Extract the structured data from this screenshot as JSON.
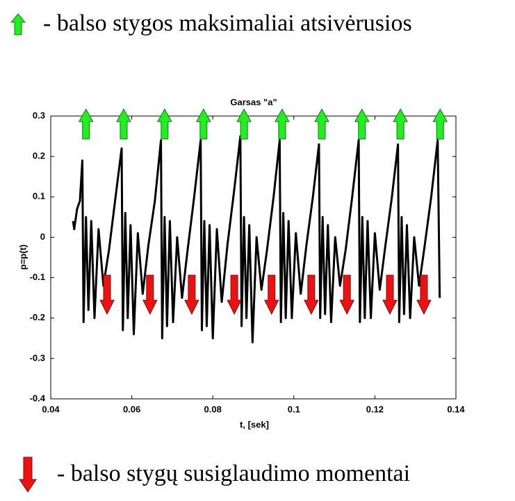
{
  "chart_data": {
    "type": "line",
    "title": "Garsas \"a\"",
    "x_label": "t, [sek]",
    "y_label": "p=p(t)",
    "color": "#000000",
    "x": [
      0.0455,
      0.0458,
      0.0465,
      0.0472,
      0.0478,
      0.0481,
      0.0487,
      0.0493,
      0.05,
      0.0508,
      0.0518,
      0.053,
      0.0544,
      0.056,
      0.0575,
      0.0578,
      0.0584,
      0.059,
      0.0597,
      0.0605,
      0.0615,
      0.0627,
      0.0641,
      0.0657,
      0.0672,
      0.0675,
      0.0681,
      0.0687,
      0.0694,
      0.0702,
      0.0712,
      0.0724,
      0.0738,
      0.0754,
      0.077,
      0.0773,
      0.0779,
      0.0785,
      0.0792,
      0.08,
      0.081,
      0.0822,
      0.0836,
      0.0852,
      0.0868,
      0.0871,
      0.0877,
      0.0883,
      0.089,
      0.0898,
      0.0908,
      0.092,
      0.0934,
      0.095,
      0.0965,
      0.0968,
      0.0974,
      0.098,
      0.0987,
      0.0995,
      0.1005,
      0.1017,
      0.1031,
      0.1047,
      0.1062,
      0.1065,
      0.1071,
      0.1077,
      0.1084,
      0.1092,
      0.1102,
      0.1114,
      0.1128,
      0.1144,
      0.116,
      0.1163,
      0.1169,
      0.1175,
      0.1182,
      0.119,
      0.12,
      0.1212,
      0.1226,
      0.1242,
      0.1257,
      0.126,
      0.1266,
      0.1272,
      0.1279,
      0.1287,
      0.1297,
      0.1309,
      0.1323,
      0.1339,
      0.1355,
      0.136
    ],
    "values": [
      0.04,
      0.02,
      0.07,
      0.09,
      0.19,
      -0.21,
      0.05,
      -0.18,
      0.04,
      -0.2,
      0.02,
      -0.12,
      -0.03,
      0.1,
      0.22,
      -0.23,
      0.06,
      -0.2,
      0.03,
      -0.24,
      0.01,
      -0.14,
      -0.02,
      0.09,
      0.24,
      -0.25,
      0.05,
      -0.22,
      0.04,
      -0.21,
      0.0,
      -0.15,
      -0.03,
      0.1,
      0.24,
      -0.23,
      0.04,
      -0.22,
      0.03,
      -0.25,
      0.02,
      -0.16,
      -0.02,
      0.11,
      0.25,
      -0.22,
      0.05,
      -0.2,
      0.03,
      -0.26,
      0.0,
      -0.13,
      -0.03,
      0.1,
      0.24,
      -0.21,
      0.06,
      -0.2,
      0.04,
      -0.2,
      0.01,
      -0.14,
      -0.02,
      0.1,
      0.23,
      -0.2,
      0.05,
      -0.19,
      0.03,
      -0.21,
      0.0,
      -0.12,
      -0.03,
      0.1,
      0.24,
      -0.21,
      0.05,
      -0.2,
      0.04,
      -0.2,
      0.01,
      -0.13,
      -0.02,
      0.1,
      0.23,
      -0.21,
      0.05,
      -0.19,
      0.03,
      -0.2,
      0.0,
      -0.12,
      -0.02,
      0.1,
      0.24,
      -0.15
    ],
    "xlim": [
      0.04,
      0.14
    ],
    "xticks": [
      0.04,
      0.06,
      0.08,
      0.1,
      0.12,
      0.14
    ],
    "ylim": [
      -0.4,
      0.3
    ],
    "yticks": [
      -0.4,
      -0.3,
      -0.2,
      -0.1,
      0,
      0.1,
      0.2,
      0.3
    ],
    "markers": [
      {
        "name": "-  balso stygos maksimaliai atsivėrusios",
        "direction": "up",
        "color": "#22ee22",
        "x": [
          0.0487,
          0.058,
          0.0681,
          0.0777,
          0.0877,
          0.0971,
          0.1069,
          0.1168,
          0.1263,
          0.1361
        ]
      },
      {
        "name": "-   balso stygų susiglaudimo momentai",
        "direction": "down",
        "color": "#ee1111",
        "x": [
          0.0539,
          0.0645,
          0.0748,
          0.0853,
          0.0945,
          0.1043,
          0.1131,
          0.1237,
          0.1321
        ]
      }
    ]
  }
}
